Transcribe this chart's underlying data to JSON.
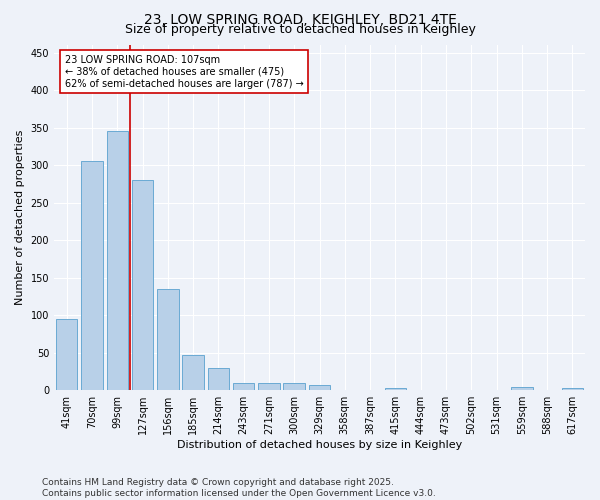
{
  "title1": "23, LOW SPRING ROAD, KEIGHLEY, BD21 4TE",
  "title2": "Size of property relative to detached houses in Keighley",
  "xlabel": "Distribution of detached houses by size in Keighley",
  "ylabel": "Number of detached properties",
  "categories": [
    "41sqm",
    "70sqm",
    "99sqm",
    "127sqm",
    "156sqm",
    "185sqm",
    "214sqm",
    "243sqm",
    "271sqm",
    "300sqm",
    "329sqm",
    "358sqm",
    "387sqm",
    "415sqm",
    "444sqm",
    "473sqm",
    "502sqm",
    "531sqm",
    "559sqm",
    "588sqm",
    "617sqm"
  ],
  "values": [
    95,
    305,
    345,
    280,
    135,
    47,
    30,
    10,
    10,
    10,
    7,
    0,
    0,
    3,
    0,
    0,
    0,
    0,
    4,
    0,
    3
  ],
  "bar_color": "#b8d0e8",
  "bar_edge_color": "#6aaad4",
  "vline_x_index": 2.5,
  "vline_color": "#cc0000",
  "annotation_text": "23 LOW SPRING ROAD: 107sqm\n← 38% of detached houses are smaller (475)\n62% of semi-detached houses are larger (787) →",
  "annotation_box_color": "#ffffff",
  "annotation_box_edge": "#cc0000",
  "ylim": [
    0,
    460
  ],
  "yticks": [
    0,
    50,
    100,
    150,
    200,
    250,
    300,
    350,
    400,
    450
  ],
  "footnote1": "Contains HM Land Registry data © Crown copyright and database right 2025.",
  "footnote2": "Contains public sector information licensed under the Open Government Licence v3.0.",
  "bg_color": "#eef2f9",
  "grid_color": "#ffffff",
  "title1_fontsize": 10,
  "title2_fontsize": 9,
  "axis_label_fontsize": 8,
  "tick_fontsize": 7,
  "annotation_fontsize": 7,
  "footnote_fontsize": 6.5
}
